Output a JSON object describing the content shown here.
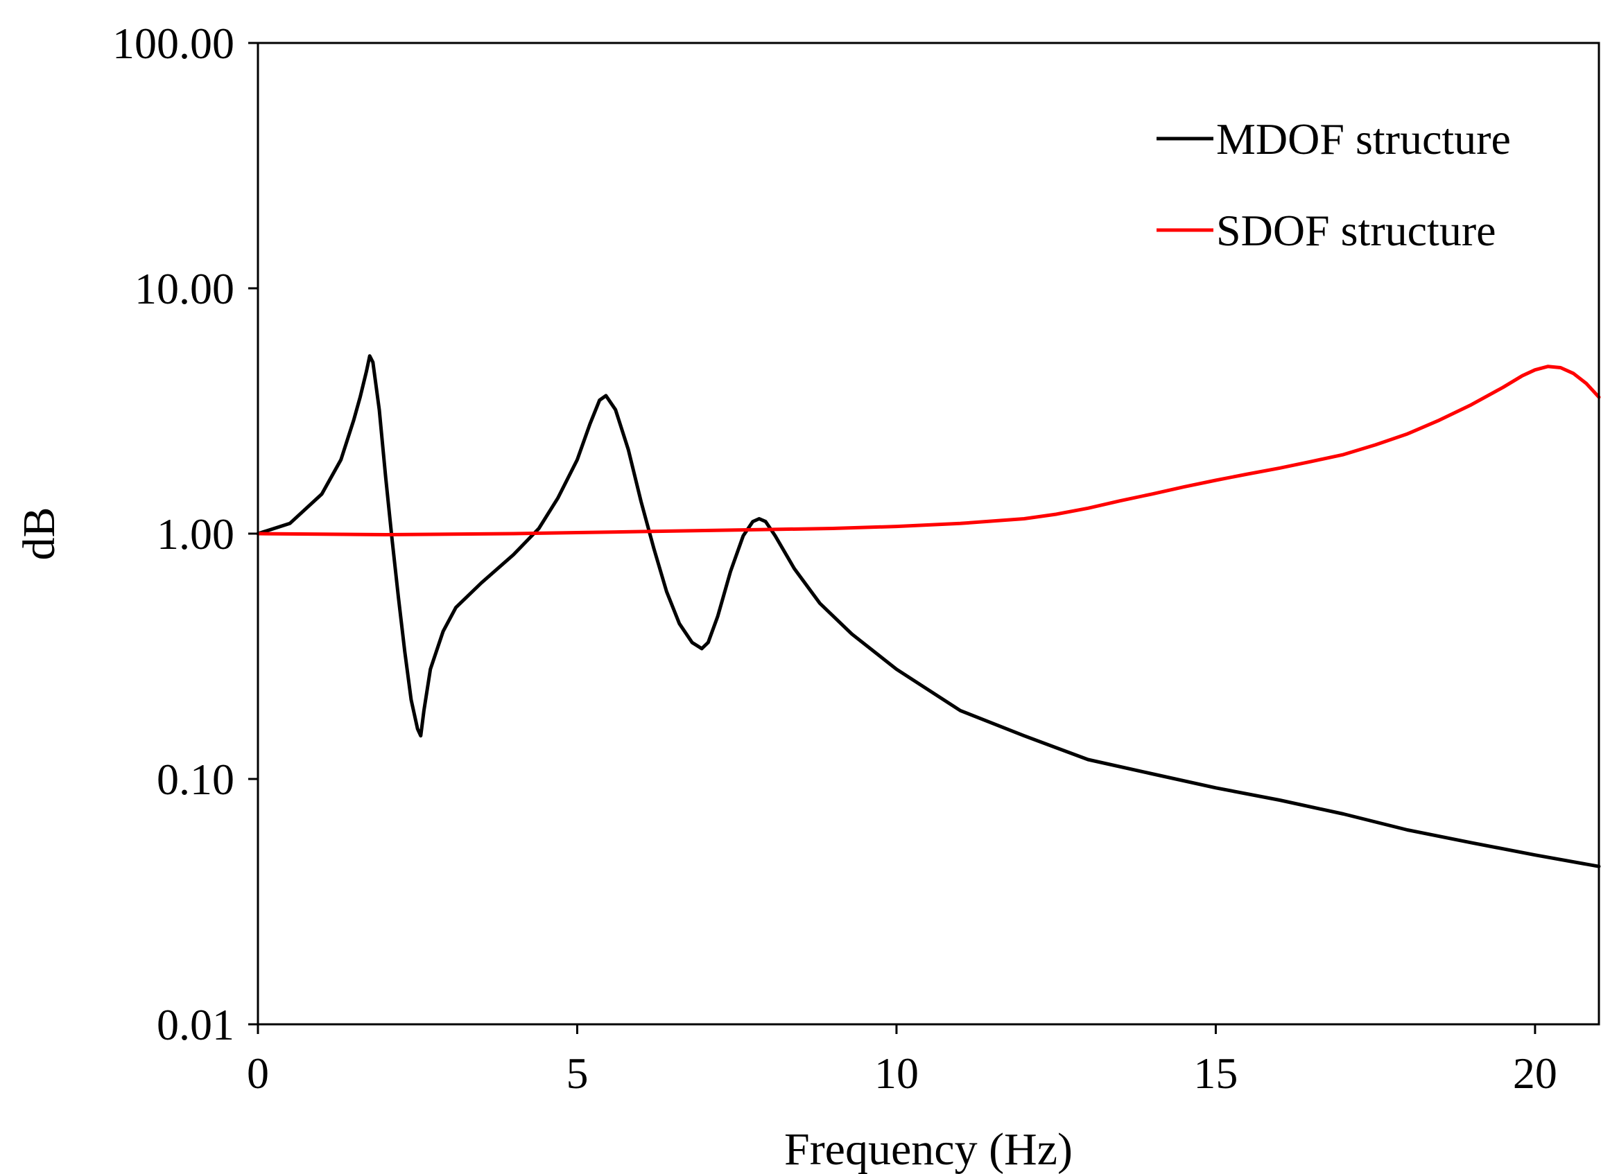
{
  "chart_data": {
    "type": "line",
    "title": "",
    "xlabel": "Frequency (Hz)",
    "ylabel": "dB",
    "xlim": [
      0,
      21
    ],
    "ylim": [
      0.01,
      100
    ],
    "yscale": "log",
    "grid": false,
    "legend_position": "top-right",
    "x_ticks": [
      {
        "value": 0,
        "label": "0"
      },
      {
        "value": 5,
        "label": "5"
      },
      {
        "value": 10,
        "label": "10"
      },
      {
        "value": 15,
        "label": "15"
      },
      {
        "value": 20,
        "label": "20"
      }
    ],
    "y_ticks": [
      {
        "value": 0.01,
        "label": "0.01"
      },
      {
        "value": 0.1,
        "label": "0.10"
      },
      {
        "value": 1,
        "label": "1.00"
      },
      {
        "value": 10,
        "label": "10.00"
      },
      {
        "value": 100,
        "label": "100.00"
      }
    ],
    "series": [
      {
        "name": "MDOF structure",
        "color": "#000000",
        "x": [
          0,
          0.5,
          1.0,
          1.3,
          1.5,
          1.6,
          1.7,
          1.75,
          1.8,
          1.9,
          2.0,
          2.1,
          2.2,
          2.3,
          2.4,
          2.5,
          2.55,
          2.6,
          2.7,
          2.9,
          3.1,
          3.5,
          4.0,
          4.4,
          4.7,
          5.0,
          5.2,
          5.35,
          5.45,
          5.6,
          5.8,
          6.0,
          6.2,
          6.4,
          6.6,
          6.8,
          6.95,
          7.05,
          7.2,
          7.4,
          7.6,
          7.75,
          7.85,
          7.95,
          8.1,
          8.4,
          8.8,
          9.3,
          10.0,
          11.0,
          12.0,
          13.0,
          14.0,
          15.0,
          16.0,
          17.0,
          18.0,
          19.0,
          20.0,
          21.0
        ],
        "y": [
          1.0,
          1.1,
          1.45,
          2.0,
          2.9,
          3.6,
          4.6,
          5.3,
          5.0,
          3.2,
          1.7,
          0.95,
          0.55,
          0.33,
          0.21,
          0.16,
          0.15,
          0.19,
          0.28,
          0.4,
          0.5,
          0.63,
          0.82,
          1.05,
          1.4,
          2.0,
          2.8,
          3.5,
          3.65,
          3.2,
          2.2,
          1.35,
          0.87,
          0.58,
          0.43,
          0.36,
          0.34,
          0.36,
          0.46,
          0.7,
          0.98,
          1.12,
          1.15,
          1.12,
          0.98,
          0.72,
          0.52,
          0.39,
          0.28,
          0.19,
          0.15,
          0.12,
          0.105,
          0.092,
          0.082,
          0.072,
          0.062,
          0.055,
          0.049,
          0.044
        ]
      },
      {
        "name": "SDOF structure",
        "color": "#ff0000",
        "x": [
          0,
          1,
          2,
          3,
          4,
          5,
          6,
          7,
          8,
          9,
          10,
          11,
          12,
          12.5,
          13,
          13.5,
          14,
          14.5,
          15,
          15.5,
          16,
          16.5,
          17,
          17.5,
          18,
          18.5,
          19,
          19.5,
          19.8,
          20.0,
          20.2,
          20.4,
          20.6,
          20.8,
          21.0
        ],
        "y": [
          1.0,
          0.995,
          0.99,
          0.995,
          1.0,
          1.01,
          1.02,
          1.03,
          1.04,
          1.05,
          1.07,
          1.1,
          1.15,
          1.2,
          1.27,
          1.36,
          1.45,
          1.55,
          1.65,
          1.75,
          1.85,
          1.97,
          2.1,
          2.3,
          2.55,
          2.9,
          3.35,
          3.95,
          4.4,
          4.65,
          4.8,
          4.75,
          4.5,
          4.1,
          3.6
        ]
      }
    ]
  }
}
